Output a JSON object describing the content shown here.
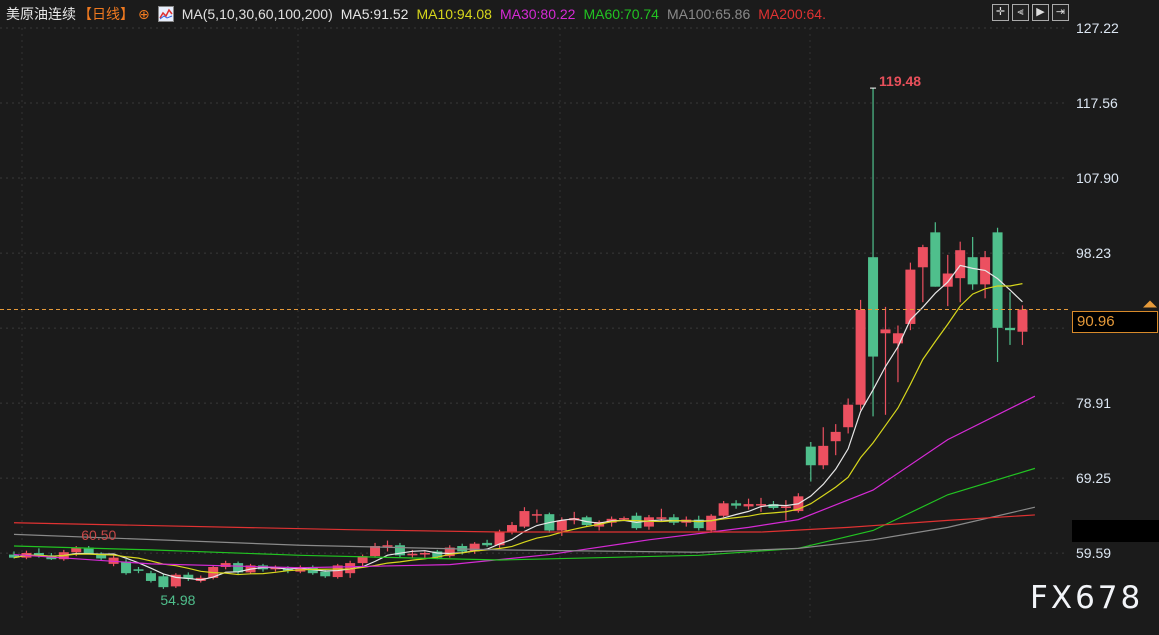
{
  "header": {
    "symbol": "美原油连续",
    "period": "【日线】",
    "ma_group": "MA(5,10,30,60,100,200)",
    "ma_values": [
      {
        "label": "MA5:91.52",
        "color": "#e6e6e6"
      },
      {
        "label": "MA10:94.08",
        "color": "#d6d61c"
      },
      {
        "label": "MA30:80.22",
        "color": "#d52ad5"
      },
      {
        "label": "MA60:70.74",
        "color": "#22c322"
      },
      {
        "label": "MA100:65.86",
        "color": "#8a8a8a"
      },
      {
        "label": "MA200:64.",
        "color": "#e03232"
      }
    ]
  },
  "toolbar": {
    "icons": [
      "crosshair-icon",
      "step-back-icon",
      "play-icon",
      "exit-icon"
    ]
  },
  "watermark": "FX678",
  "chart_data": {
    "type": "candlestick",
    "up_color": "#ec5060",
    "down_color": "#4fbf8c",
    "y_ticks": [
      "127.22",
      "117.56",
      "107.90",
      "98.23",
      "78.91",
      "69.25",
      "59.59"
    ],
    "ylim": [
      56.0,
      127.22
    ],
    "current_price": "90.96",
    "annotations": [
      {
        "text": "119.48",
        "price": 119.48,
        "index": 69,
        "color": "#e8505b"
      },
      {
        "text": "60.50",
        "price": 60.5,
        "index": 5,
        "color": "#c84848"
      },
      {
        "text": "54.98",
        "price": 54.98,
        "index": 12,
        "color": "#4fbf8c"
      }
    ],
    "candles_ohlc": [
      [
        59.4,
        59.8,
        58.9,
        59.0
      ],
      [
        59.0,
        59.9,
        58.8,
        59.6
      ],
      [
        59.6,
        60.2,
        59.0,
        59.3
      ],
      [
        59.3,
        59.6,
        58.7,
        58.8
      ],
      [
        58.8,
        60.0,
        58.6,
        59.7
      ],
      [
        59.7,
        60.5,
        59.2,
        60.3
      ],
      [
        60.3,
        60.5,
        59.4,
        59.5
      ],
      [
        59.5,
        59.7,
        58.7,
        58.9
      ],
      [
        58.2,
        59.4,
        57.9,
        59.0
      ],
      [
        58.5,
        58.8,
        56.8,
        57.0
      ],
      [
        57.5,
        57.8,
        57.0,
        57.3
      ],
      [
        57.0,
        57.3,
        55.8,
        56.0
      ],
      [
        56.6,
        56.9,
        54.98,
        55.2
      ],
      [
        55.3,
        57.0,
        55.1,
        56.8
      ],
      [
        56.8,
        57.1,
        56.0,
        56.3
      ],
      [
        56.0,
        56.7,
        55.8,
        56.4
      ],
      [
        56.4,
        58.0,
        56.2,
        57.8
      ],
      [
        57.8,
        58.6,
        57.5,
        58.3
      ],
      [
        58.3,
        58.5,
        56.9,
        57.1
      ],
      [
        57.1,
        58.2,
        56.9,
        58.0
      ],
      [
        58.0,
        58.2,
        57.2,
        57.5
      ],
      [
        57.5,
        58.0,
        57.2,
        57.7
      ],
      [
        57.6,
        57.9,
        57.0,
        57.3
      ],
      [
        57.2,
        58.0,
        57.0,
        57.8
      ],
      [
        57.8,
        58.0,
        56.8,
        57.0
      ],
      [
        57.2,
        57.4,
        56.4,
        56.6
      ],
      [
        56.5,
        58.2,
        56.3,
        58.0
      ],
      [
        57.0,
        58.6,
        56.4,
        58.3
      ],
      [
        58.3,
        59.4,
        57.9,
        59.2
      ],
      [
        59.2,
        60.9,
        59.0,
        60.5
      ],
      [
        60.5,
        61.2,
        59.8,
        60.6
      ],
      [
        60.6,
        60.9,
        59.0,
        59.3
      ],
      [
        59.3,
        60.0,
        59.0,
        59.5
      ],
      [
        59.5,
        59.8,
        58.9,
        59.6
      ],
      [
        59.8,
        60.0,
        58.8,
        59.0
      ],
      [
        59.2,
        60.6,
        59.0,
        60.3
      ],
      [
        60.5,
        60.8,
        59.4,
        59.8
      ],
      [
        59.8,
        61.0,
        59.5,
        60.8
      ],
      [
        60.9,
        61.3,
        60.4,
        60.6
      ],
      [
        60.6,
        62.6,
        60.2,
        62.3
      ],
      [
        62.3,
        63.6,
        62.0,
        63.2
      ],
      [
        63.0,
        65.5,
        62.8,
        65.0
      ],
      [
        64.5,
        65.2,
        63.5,
        64.6
      ],
      [
        64.6,
        64.8,
        62.2,
        62.5
      ],
      [
        62.5,
        64.2,
        61.8,
        63.8
      ],
      [
        63.8,
        64.9,
        63.3,
        64.1
      ],
      [
        64.2,
        64.4,
        63.0,
        63.2
      ],
      [
        63.0,
        63.8,
        62.5,
        63.6
      ],
      [
        63.5,
        64.3,
        63.0,
        64.0
      ],
      [
        64.0,
        64.3,
        63.8,
        64.1
      ],
      [
        64.4,
        64.8,
        62.6,
        62.8
      ],
      [
        63.0,
        64.5,
        62.6,
        64.2
      ],
      [
        64.0,
        65.3,
        63.6,
        64.2
      ],
      [
        64.2,
        64.6,
        63.2,
        63.5
      ],
      [
        63.5,
        64.3,
        63.0,
        63.9
      ],
      [
        63.9,
        64.4,
        62.5,
        62.8
      ],
      [
        62.5,
        64.6,
        62.2,
        64.4
      ],
      [
        64.4,
        66.3,
        64.2,
        66.0
      ],
      [
        66.0,
        66.4,
        65.3,
        65.7
      ],
      [
        65.6,
        66.6,
        65.2,
        65.9
      ],
      [
        65.9,
        66.7,
        64.9,
        65.9
      ],
      [
        65.9,
        66.3,
        65.2,
        65.4
      ],
      [
        65.4,
        66.4,
        63.8,
        65.6
      ],
      [
        65.0,
        67.3,
        64.8,
        66.9
      ],
      [
        73.3,
        73.9,
        68.8,
        70.9
      ],
      [
        70.9,
        75.8,
        70.4,
        73.4
      ],
      [
        74.0,
        76.2,
        72.2,
        75.2
      ],
      [
        75.8,
        79.5,
        75.0,
        78.7
      ],
      [
        78.7,
        92.2,
        78.0,
        90.9
      ],
      [
        97.7,
        119.48,
        77.2,
        84.9
      ],
      [
        87.9,
        91.3,
        77.4,
        88.4
      ],
      [
        86.6,
        88.9,
        81.6,
        87.9
      ],
      [
        89.1,
        97.0,
        88.3,
        96.1
      ],
      [
        96.4,
        99.3,
        91.9,
        99.0
      ],
      [
        100.9,
        102.2,
        93.9,
        93.9
      ],
      [
        93.9,
        98.0,
        91.4,
        95.6
      ],
      [
        95.0,
        99.7,
        91.9,
        98.6
      ],
      [
        97.7,
        100.3,
        93.5,
        94.2
      ],
      [
        94.2,
        98.5,
        92.4,
        97.7
      ],
      [
        100.9,
        101.5,
        84.2,
        88.6
      ],
      [
        88.6,
        93.2,
        86.4,
        88.3
      ],
      [
        88.1,
        91.5,
        86.4,
        90.96
      ]
    ],
    "moving_averages": [
      {
        "name": "MA5",
        "color": "#e6e6e6",
        "period": 5
      },
      {
        "name": "MA10",
        "color": "#d6d61c",
        "period": 10
      },
      {
        "name": "MA30",
        "color": "#d52ad5",
        "points": [
          [
            0,
            59.4
          ],
          [
            11,
            58.2
          ],
          [
            23,
            57.7
          ],
          [
            35,
            58.1
          ],
          [
            43,
            59.4
          ],
          [
            51,
            61.3
          ],
          [
            59,
            62.9
          ],
          [
            63,
            63.9
          ],
          [
            69,
            67.7
          ],
          [
            75,
            74.2
          ],
          [
            82,
            79.8
          ]
        ]
      },
      {
        "name": "MA60",
        "color": "#22c322",
        "points": [
          [
            0,
            60.5
          ],
          [
            11,
            60.0
          ],
          [
            23,
            59.3
          ],
          [
            39,
            58.7
          ],
          [
            55,
            59.3
          ],
          [
            63,
            60.2
          ],
          [
            69,
            62.5
          ],
          [
            75,
            67.1
          ],
          [
            82,
            70.5
          ]
        ]
      },
      {
        "name": "MA100",
        "color": "#8a8a8a",
        "points": [
          [
            0,
            62.0
          ],
          [
            23,
            60.6
          ],
          [
            39,
            60.0
          ],
          [
            55,
            59.7
          ],
          [
            63,
            60.2
          ],
          [
            69,
            61.3
          ],
          [
            75,
            62.9
          ],
          [
            82,
            65.5
          ]
        ]
      },
      {
        "name": "MA200",
        "color": "#e03232",
        "points": [
          [
            0,
            63.5
          ],
          [
            27,
            62.6
          ],
          [
            39,
            62.3
          ],
          [
            60,
            62.3
          ],
          [
            67,
            62.9
          ],
          [
            75,
            63.8
          ],
          [
            82,
            64.5
          ]
        ]
      }
    ]
  }
}
